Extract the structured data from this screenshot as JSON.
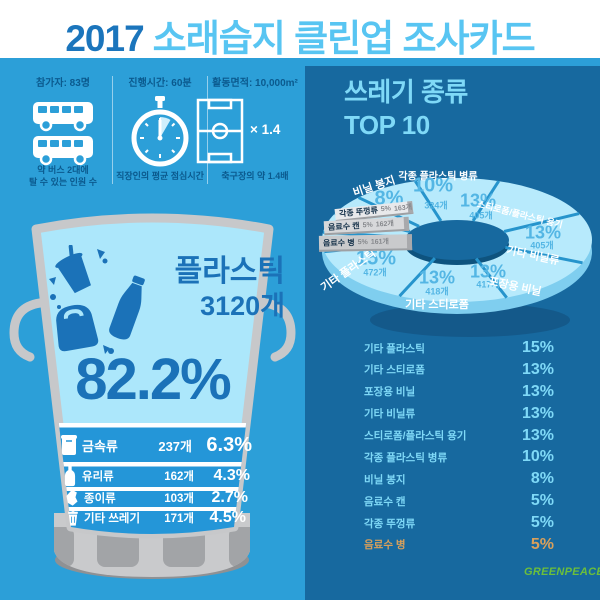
{
  "title": {
    "year": "2017",
    "rest": "소래습지 클린업 조사카드"
  },
  "stats": [
    {
      "icon": "bus-icon",
      "label": "참가자: 83명",
      "caption": "약 버스 2대에\n탈 수 있는 인원 수"
    },
    {
      "icon": "stopwatch-icon",
      "label": "진행시간: 60분",
      "caption": "직장인의 평균 점심시간"
    },
    {
      "icon": "soccer-field-icon",
      "label": "활동면적: 10,000m²",
      "caption": "축구장의 약 1.4배",
      "multiplier": "× 1.4"
    }
  ],
  "trash_can": {
    "main_label": "플라스틱",
    "main_count": "3120개",
    "main_percent": "82.2%",
    "rows": [
      {
        "icon": "can-icon",
        "label": "금속류",
        "count": "237개",
        "percent": "6.3%"
      },
      {
        "icon": "glass-bottle-icon",
        "label": "유리류",
        "count": "162개",
        "percent": "4.3%"
      },
      {
        "icon": "paper-icon",
        "label": "종이류",
        "count": "103개",
        "percent": "2.7%"
      },
      {
        "icon": "trash-bin-icon",
        "label": "기타 쓰레기",
        "count": "171개",
        "percent": "4.5%"
      }
    ]
  },
  "top10": {
    "heading_line1": "쓰레기 종류",
    "heading_line2": "TOP 10",
    "legend": [
      {
        "label": "기타 플라스틱",
        "pct_text": "15%"
      },
      {
        "label": "기타 스티로폼",
        "pct_text": "13%"
      },
      {
        "label": "포장용 비닐",
        "pct_text": "13%"
      },
      {
        "label": "기타 비닐류",
        "pct_text": "13%"
      },
      {
        "label": "스티로폼/플라스틱 용기",
        "pct_text": "13%"
      },
      {
        "label": "각종 플라스틱 병류",
        "pct_text": "10%"
      },
      {
        "label": "비닐 봉지",
        "pct_text": "8%"
      },
      {
        "label": "음료수 캔",
        "pct_text": "5%"
      },
      {
        "label": "각종 뚜껑류",
        "pct_text": "5%"
      },
      {
        "label": "음료수 병",
        "pct_text": "5%",
        "highlighted": true
      }
    ]
  },
  "footer": {
    "logo_text": "GREENPEACE"
  },
  "colors": {
    "title_year": "#1B75BC",
    "title_rest": "#58C5F2",
    "panel_left": "#2C9FD8",
    "panel_right": "#17699F",
    "navy_text": "#0B5A8E",
    "can_interior": "#ACE7FB",
    "can_grey": "#C7C8CA",
    "rows_bg": "#2496D8",
    "dark_blue_graphic": "#1B72B8",
    "donut_top": "#B7EAFC",
    "donut_side": "#7FCEEF",
    "donut_gap": "#2694CC",
    "donut_shadow": "#14598A",
    "donut_hole_shade": "#0E537E",
    "pct_on_slice": "#54B6E4",
    "legend_text": "#7FD9F7",
    "legend_highlight": "#D9A05B",
    "greenpeace_green": "#6CBF3B"
  },
  "chart_data": [
    {
      "type": "pie",
      "title": "쓰레기 종류 TOP 10",
      "start_angle_deg": -90,
      "direction": "clockwise",
      "slices": [
        {
          "label": "각종 플라스틱 병류",
          "percent": 10,
          "count": 324,
          "pct_text": "10%",
          "count_text": "324개"
        },
        {
          "label": "스티로폼/플라스틱 용기",
          "percent": 13,
          "count": 405,
          "pct_text": "13%",
          "count_text": "405개"
        },
        {
          "label": "기타 비닐류",
          "percent": 13,
          "count": 405,
          "pct_text": "13%",
          "count_text": "405개"
        },
        {
          "label": "포장용 비닐",
          "percent": 13,
          "count": 417,
          "pct_text": "13%",
          "count_text": "417개"
        },
        {
          "label": "기타 스티로폼",
          "percent": 13,
          "count": 418,
          "pct_text": "13%",
          "count_text": "418개"
        },
        {
          "label": "기타 플라스틱",
          "percent": 15,
          "count": 472,
          "pct_text": "15%",
          "count_text": "472개"
        },
        {
          "label": "음료수 병",
          "percent": 5,
          "count": 161,
          "pct_text": "5%",
          "count_text": "161개"
        },
        {
          "label": "음료수 캔",
          "percent": 5,
          "count": 162,
          "pct_text": "5%",
          "count_text": "162개"
        },
        {
          "label": "각종 뚜껑류",
          "percent": 5,
          "count": 163,
          "pct_text": "5%",
          "count_text": "163개"
        },
        {
          "label": "비닐 봉지",
          "percent": 8,
          "count": 241,
          "pct_text": "8%",
          "count_text": "241개"
        }
      ]
    },
    {
      "type": "pie",
      "categories": [
        "플라스틱",
        "금속류",
        "유리류",
        "종이류",
        "기타 쓰레기"
      ],
      "values_percent": [
        82.2,
        6.3,
        4.3,
        2.7,
        4.5
      ],
      "counts": [
        3120,
        237,
        162,
        103,
        171
      ]
    }
  ]
}
